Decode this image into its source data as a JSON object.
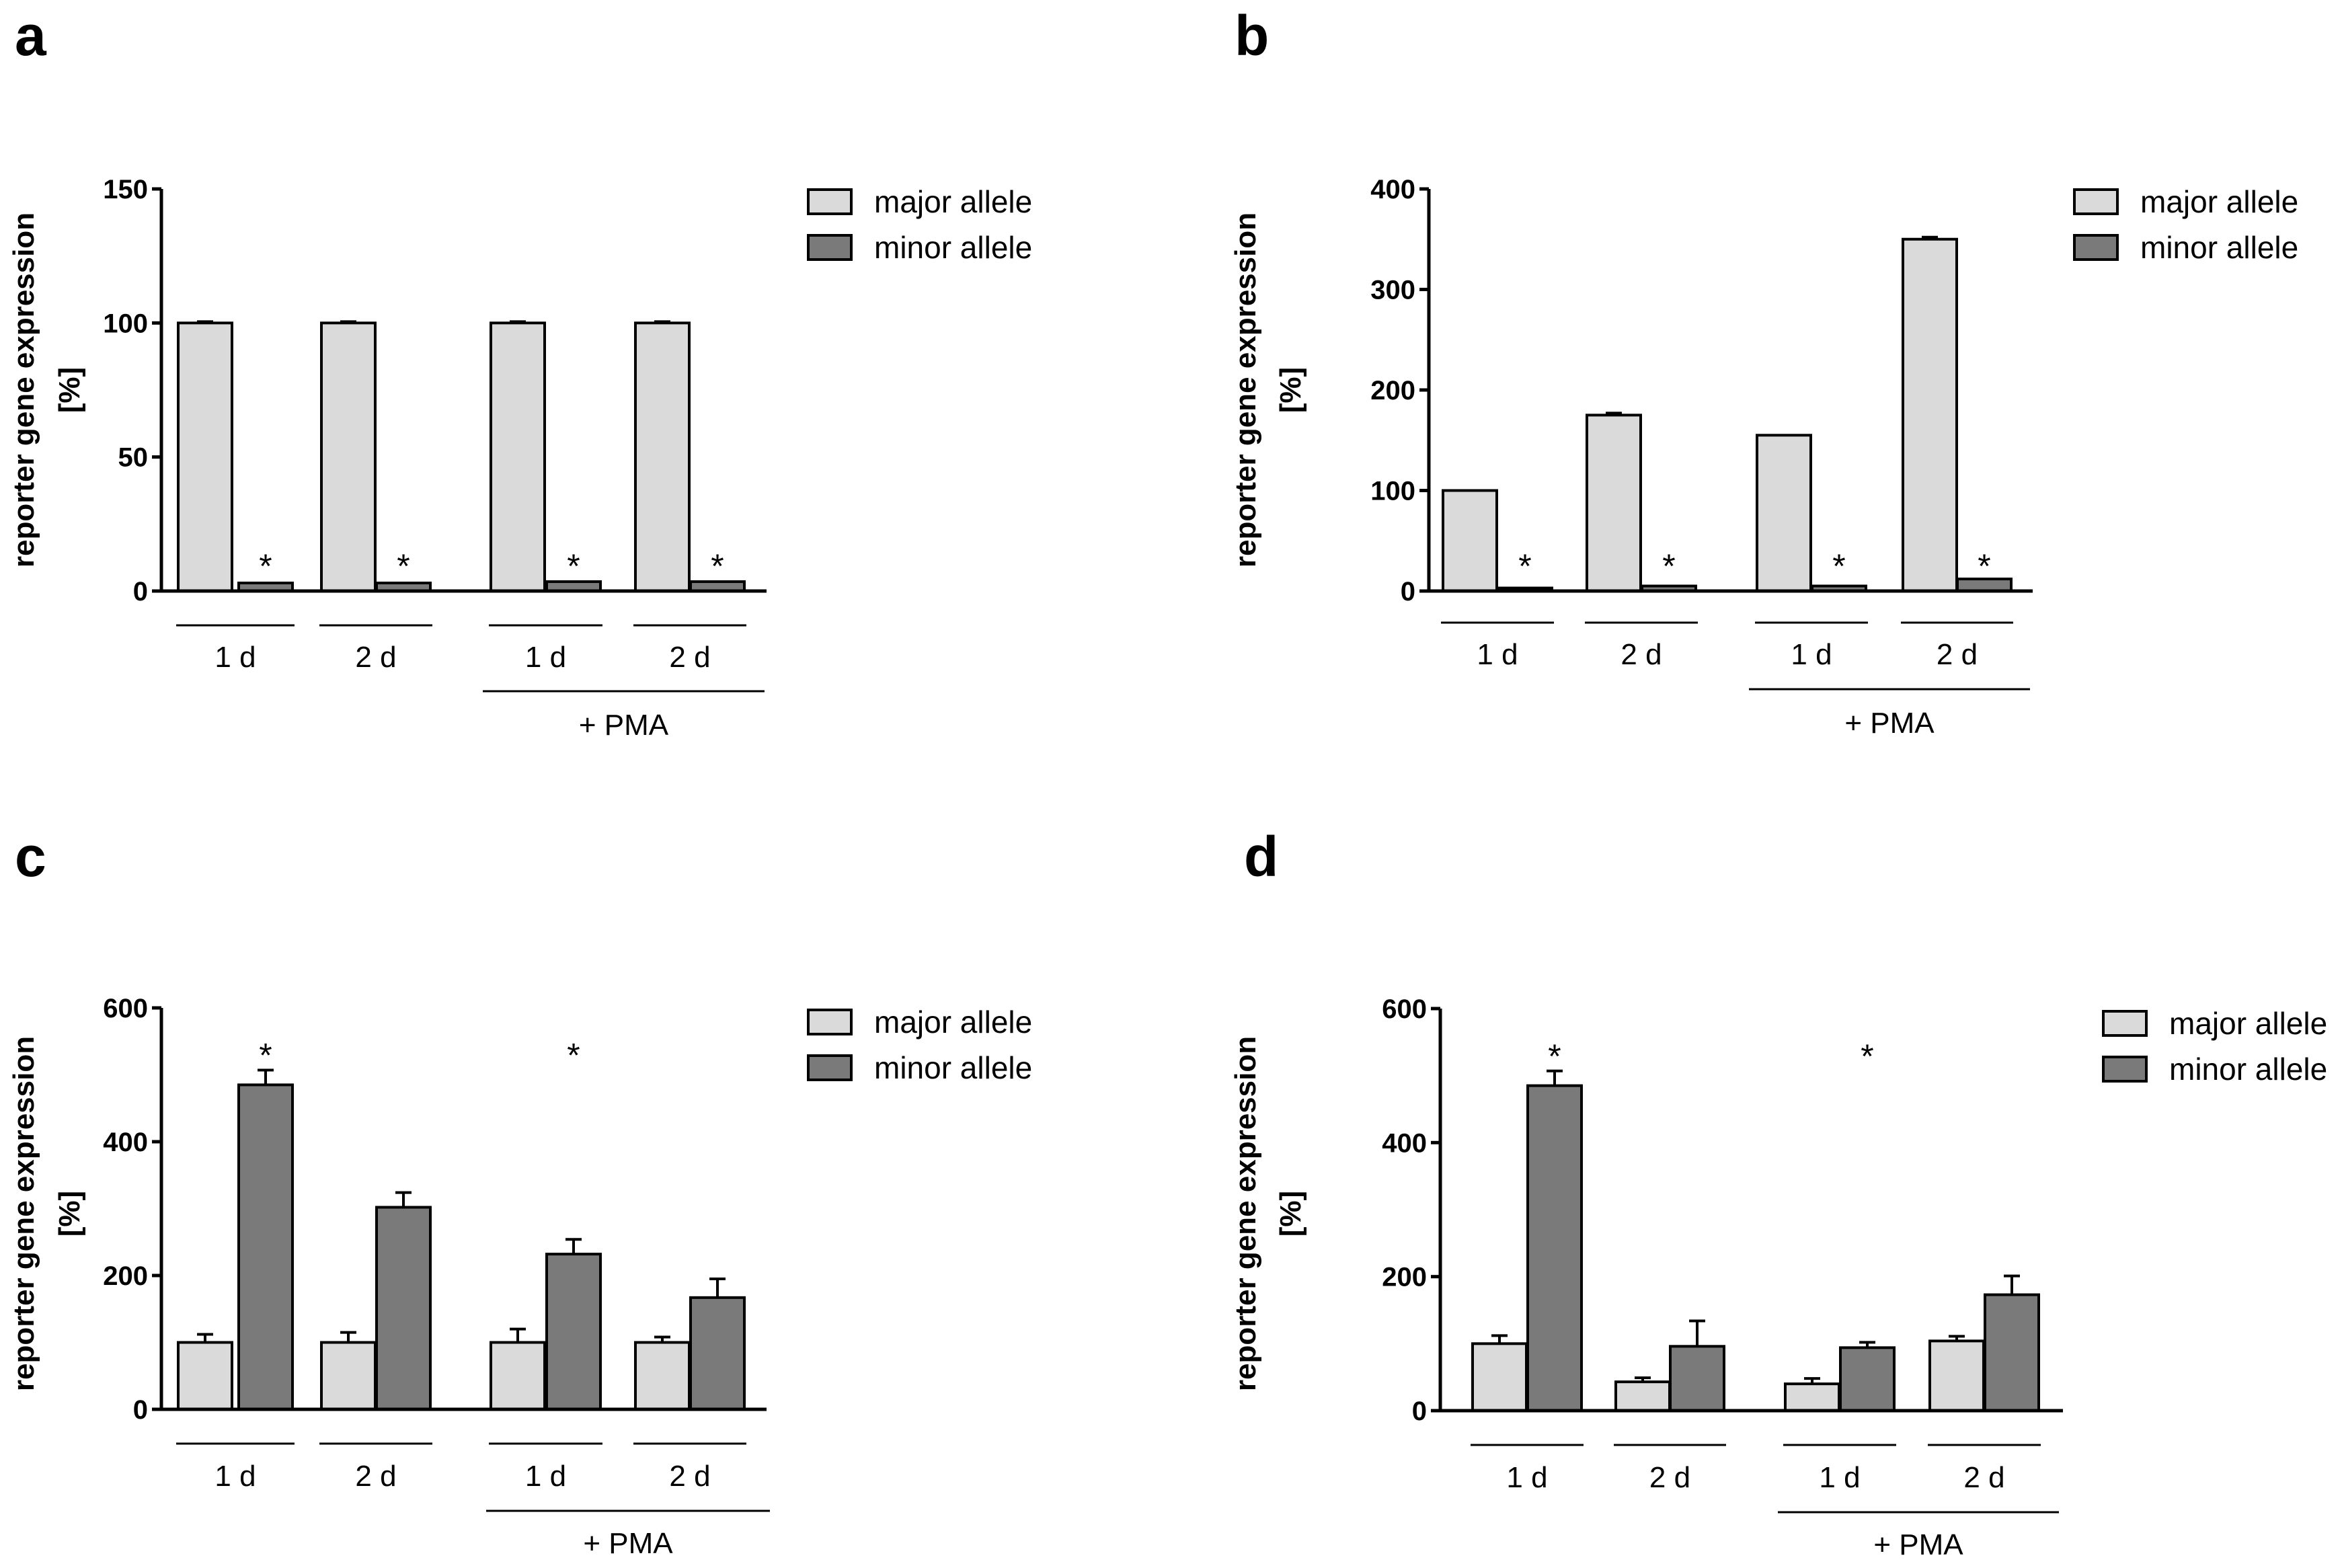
{
  "colors": {
    "major": "#dadada",
    "minor": "#7a7a7a",
    "axis": "#000000"
  },
  "chart_data": [
    {
      "panel_label": "a",
      "type": "bar",
      "ylabel_line1": "reporter gene expression",
      "ylabel_line2": "[%]",
      "ylim": [
        0,
        150
      ],
      "yticks": [
        "0",
        "50",
        "100",
        "150"
      ],
      "ytick_values": [
        0,
        50,
        100,
        150
      ],
      "categories": [
        "1 d",
        "2 d",
        "1 d",
        "2 d"
      ],
      "group_label": "+ PMA",
      "legend": [
        "major allele",
        "minor allele"
      ],
      "series": [
        {
          "name": "major allele",
          "values": [
            100,
            100,
            100,
            100
          ],
          "errors": [
            0.5,
            0.5,
            0.5,
            0.5
          ]
        },
        {
          "name": "minor allele",
          "values": [
            3,
            3,
            3.5,
            3.5
          ],
          "errors": [
            0,
            0,
            0,
            0
          ]
        }
      ],
      "significance": [
        "*",
        "*",
        "*",
        "*"
      ],
      "significance_values": [
        12,
        12,
        12,
        12
      ]
    },
    {
      "panel_label": "b",
      "type": "bar",
      "ylabel_line1": "reporter gene expression",
      "ylabel_line2": "[%]",
      "ylim": [
        0,
        400
      ],
      "yticks": [
        "0",
        "100",
        "200",
        "300",
        "400"
      ],
      "ytick_values": [
        0,
        100,
        200,
        300,
        400
      ],
      "categories": [
        "1 d",
        "2 d",
        "1 d",
        "2 d"
      ],
      "group_label": "+ PMA",
      "legend": [
        "major allele",
        "minor allele"
      ],
      "series": [
        {
          "name": "major allele",
          "values": [
            100,
            175,
            155,
            350
          ],
          "errors": [
            0,
            2,
            0,
            2
          ]
        },
        {
          "name": "minor allele",
          "values": [
            3,
            5,
            5,
            12
          ],
          "errors": [
            0,
            0,
            0,
            0
          ]
        }
      ],
      "significance": [
        "*",
        "*",
        "*",
        "*"
      ],
      "significance_values": [
        32,
        32,
        32,
        32
      ]
    },
    {
      "panel_label": "c",
      "type": "bar",
      "ylabel_line1": "reporter gene expression",
      "ylabel_line2": "[%]",
      "ylim": [
        0,
        600
      ],
      "yticks": [
        "0",
        "200",
        "400",
        "600"
      ],
      "ytick_values": [
        0,
        200,
        400,
        600
      ],
      "categories": [
        "1 d",
        "2 d",
        "1 d",
        "2 d"
      ],
      "group_label": "+ PMA",
      "legend": [
        "major allele",
        "minor allele"
      ],
      "series": [
        {
          "name": "major allele",
          "values": [
            100,
            100,
            100,
            100
          ],
          "errors": [
            12,
            15,
            20,
            8
          ]
        },
        {
          "name": "minor allele",
          "values": [
            485,
            302,
            232,
            167
          ],
          "errors": [
            22,
            22,
            22,
            28
          ]
        }
      ],
      "significance": [
        "*",
        "",
        "*",
        ""
      ],
      "significance_values": [
        540,
        0,
        540,
        0
      ]
    },
    {
      "panel_label": "d",
      "type": "bar",
      "ylabel_line1": "reporter gene expression",
      "ylabel_line2": "[%]",
      "ylim": [
        0,
        600
      ],
      "yticks": [
        "0",
        "200",
        "400",
        "600"
      ],
      "ytick_values": [
        0,
        200,
        400,
        600
      ],
      "categories": [
        "1 d",
        "2 d",
        "1 d",
        "2 d"
      ],
      "group_label": "+ PMA",
      "legend": [
        "major allele",
        "minor allele"
      ],
      "series": [
        {
          "name": "major allele",
          "values": [
            100,
            43,
            40,
            104
          ],
          "errors": [
            12,
            6,
            8,
            7
          ]
        },
        {
          "name": "minor allele",
          "values": [
            485,
            96,
            94,
            173
          ],
          "errors": [
            22,
            38,
            8,
            28
          ]
        }
      ],
      "significance": [
        "*",
        "",
        "*",
        ""
      ],
      "significance_values": [
        540,
        0,
        540,
        0
      ]
    }
  ]
}
